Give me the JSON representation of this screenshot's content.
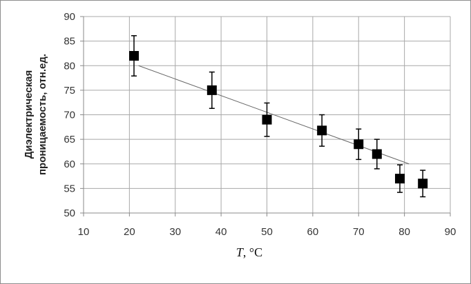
{
  "chart_data": {
    "type": "scatter",
    "ylabel_line1": "Диэлектрическая",
    "ylabel_line2": "проницаемость, отн.ед.",
    "xlabel_var": "T",
    "xlabel_unit": ", °C",
    "xlim": [
      10,
      90
    ],
    "ylim": [
      50,
      90
    ],
    "x_ticks": [
      10,
      20,
      30,
      40,
      50,
      60,
      70,
      80,
      90
    ],
    "y_ticks": [
      50,
      55,
      60,
      65,
      70,
      75,
      80,
      85,
      90
    ],
    "grid": true,
    "series": [
      {
        "marker": "square",
        "color": "#000000",
        "points": [
          {
            "x": 21,
            "y": 82,
            "err": 4.1
          },
          {
            "x": 38,
            "y": 75,
            "err": 3.7
          },
          {
            "x": 50,
            "y": 69,
            "err": 3.4
          },
          {
            "x": 62,
            "y": 66.8,
            "err": 3.2
          },
          {
            "x": 70,
            "y": 64,
            "err": 3.1
          },
          {
            "x": 74,
            "y": 62,
            "err": 3.0
          },
          {
            "x": 79,
            "y": 57,
            "err": 2.8
          },
          {
            "x": 84,
            "y": 56,
            "err": 2.7
          }
        ]
      }
    ],
    "trendline": {
      "x": [
        22,
        81
      ],
      "y": [
        80,
        60
      ],
      "color": "#666666"
    }
  }
}
